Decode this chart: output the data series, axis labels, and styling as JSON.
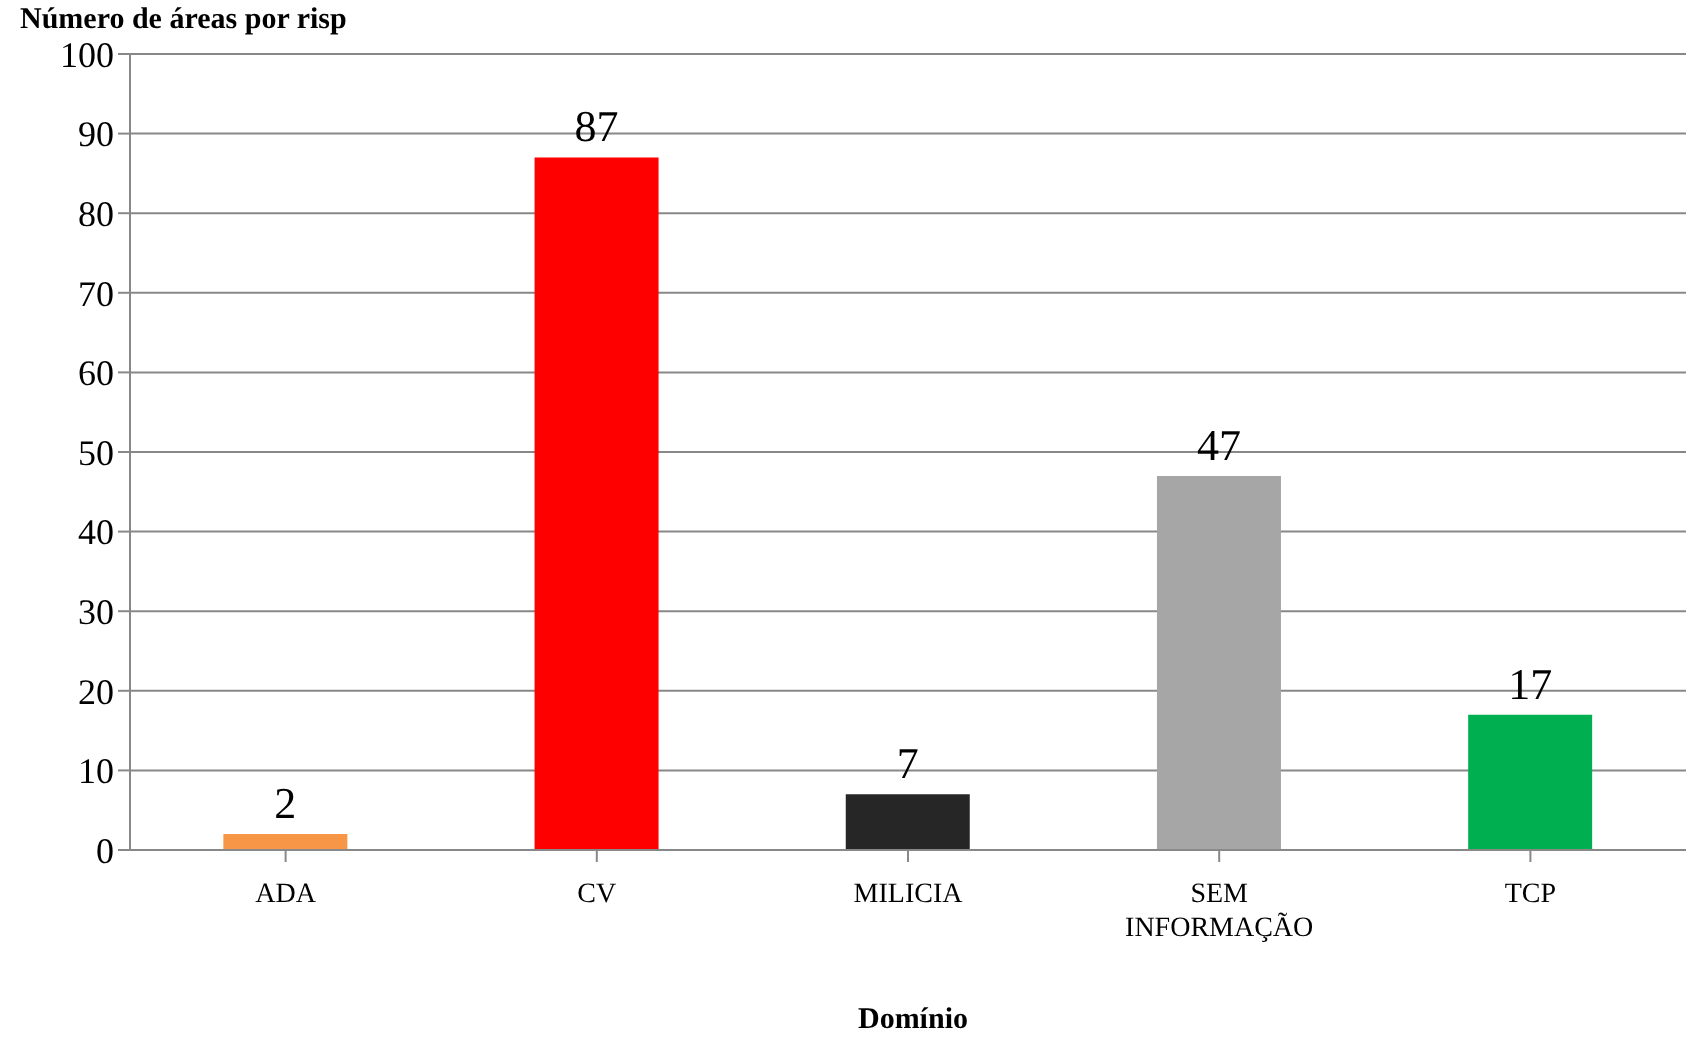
{
  "chart_data": {
    "type": "bar",
    "ylabel": "Número de áreas por risp",
    "xlabel": "Domínio",
    "categories": [
      "ADA",
      "CV",
      "MILICIA",
      "SEM INFORMAÇÃO",
      "TCP"
    ],
    "values": [
      2,
      87,
      7,
      47,
      17
    ],
    "colors": [
      "#f79646",
      "#ff0000",
      "#262626",
      "#a6a6a6",
      "#00b050"
    ],
    "ylim": [
      0,
      100
    ],
    "yticks": [
      0,
      10,
      20,
      30,
      40,
      50,
      60,
      70,
      80,
      90,
      100
    ],
    "grid": "y",
    "data_labels": true
  }
}
